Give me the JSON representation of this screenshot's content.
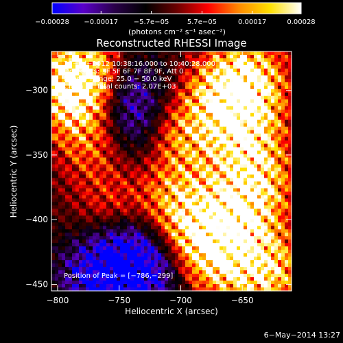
{
  "chart_data": {
    "type": "heatmap",
    "title": "Reconstructed RHESSI Image",
    "xlabel": "Heliocentric X (arcsec)",
    "ylabel": "Heliocentric Y (arcsec)",
    "xlim": [
      -805,
      -610
    ],
    "ylim": [
      -455,
      -270
    ],
    "xticks": [
      -800,
      -750,
      -700,
      -650
    ],
    "xtick_labels": [
      "−800",
      "−750",
      "−700",
      "−650"
    ],
    "yticks": [
      -300,
      -350,
      -400,
      -450
    ],
    "ytick_labels": [
      "−300",
      "−350",
      "−400",
      "−450"
    ],
    "colorbar": {
      "range": [
        -0.00028,
        0.00028
      ],
      "ticks": [
        -0.00028,
        -0.00017,
        -5.7e-05,
        5.7e-05,
        0.00017,
        0.00028
      ],
      "tick_labels": [
        "−0.00028",
        "−0.00017",
        "−5.7e−05",
        "5.7e−05",
        "0.00017",
        "0.00028"
      ],
      "unit_label": "(photons cm⁻² s⁻¹ asec⁻²)",
      "colors": [
        "#0000ff",
        "#5a00c8",
        "#2a004a",
        "#000000",
        "#6a0000",
        "#ff0000",
        "#ff8a00",
        "#ffe000",
        "#ffffff"
      ]
    },
    "annotations": [
      "26−Jul−2012 10:38:16.000 to 10:40:28.000",
      "Detectors: 3F 5F 6F 7F 8F 9F, Att 0",
      "Energy Range: 25.0 − 50.0 keV",
      "Clean      Total counts: 2.07E+03"
    ],
    "peak_label": "Position of Peak = [−786,−299]",
    "peak": {
      "x": -786,
      "y": -299
    },
    "hotspots": [
      {
        "x": -790,
        "y": -300,
        "v": 1.0
      },
      {
        "x": -775,
        "y": -285,
        "v": 0.8
      },
      {
        "x": -770,
        "y": -340,
        "v": 0.55
      },
      {
        "x": -705,
        "y": -335,
        "v": 0.7
      },
      {
        "x": -665,
        "y": -305,
        "v": 0.75
      },
      {
        "x": -645,
        "y": -290,
        "v": 0.9
      },
      {
        "x": -650,
        "y": -330,
        "v": 0.9
      },
      {
        "x": -640,
        "y": -370,
        "v": 0.85
      },
      {
        "x": -655,
        "y": -400,
        "v": 0.8
      },
      {
        "x": -670,
        "y": -430,
        "v": 0.75
      },
      {
        "x": -700,
        "y": -385,
        "v": 0.65
      },
      {
        "x": -690,
        "y": -415,
        "v": 0.6
      },
      {
        "x": -630,
        "y": -440,
        "v": 0.9
      },
      {
        "x": -755,
        "y": -395,
        "v": 0.45
      }
    ],
    "coldspots": [
      {
        "x": -735,
        "y": -330,
        "v": -0.6
      },
      {
        "x": -745,
        "y": -300,
        "v": -0.55
      },
      {
        "x": -745,
        "y": -425,
        "v": -0.8
      },
      {
        "x": -770,
        "y": -445,
        "v": -0.7
      },
      {
        "x": -720,
        "y": -440,
        "v": -0.6
      }
    ]
  },
  "footer": {
    "date": "6−May−2014 13:27"
  }
}
